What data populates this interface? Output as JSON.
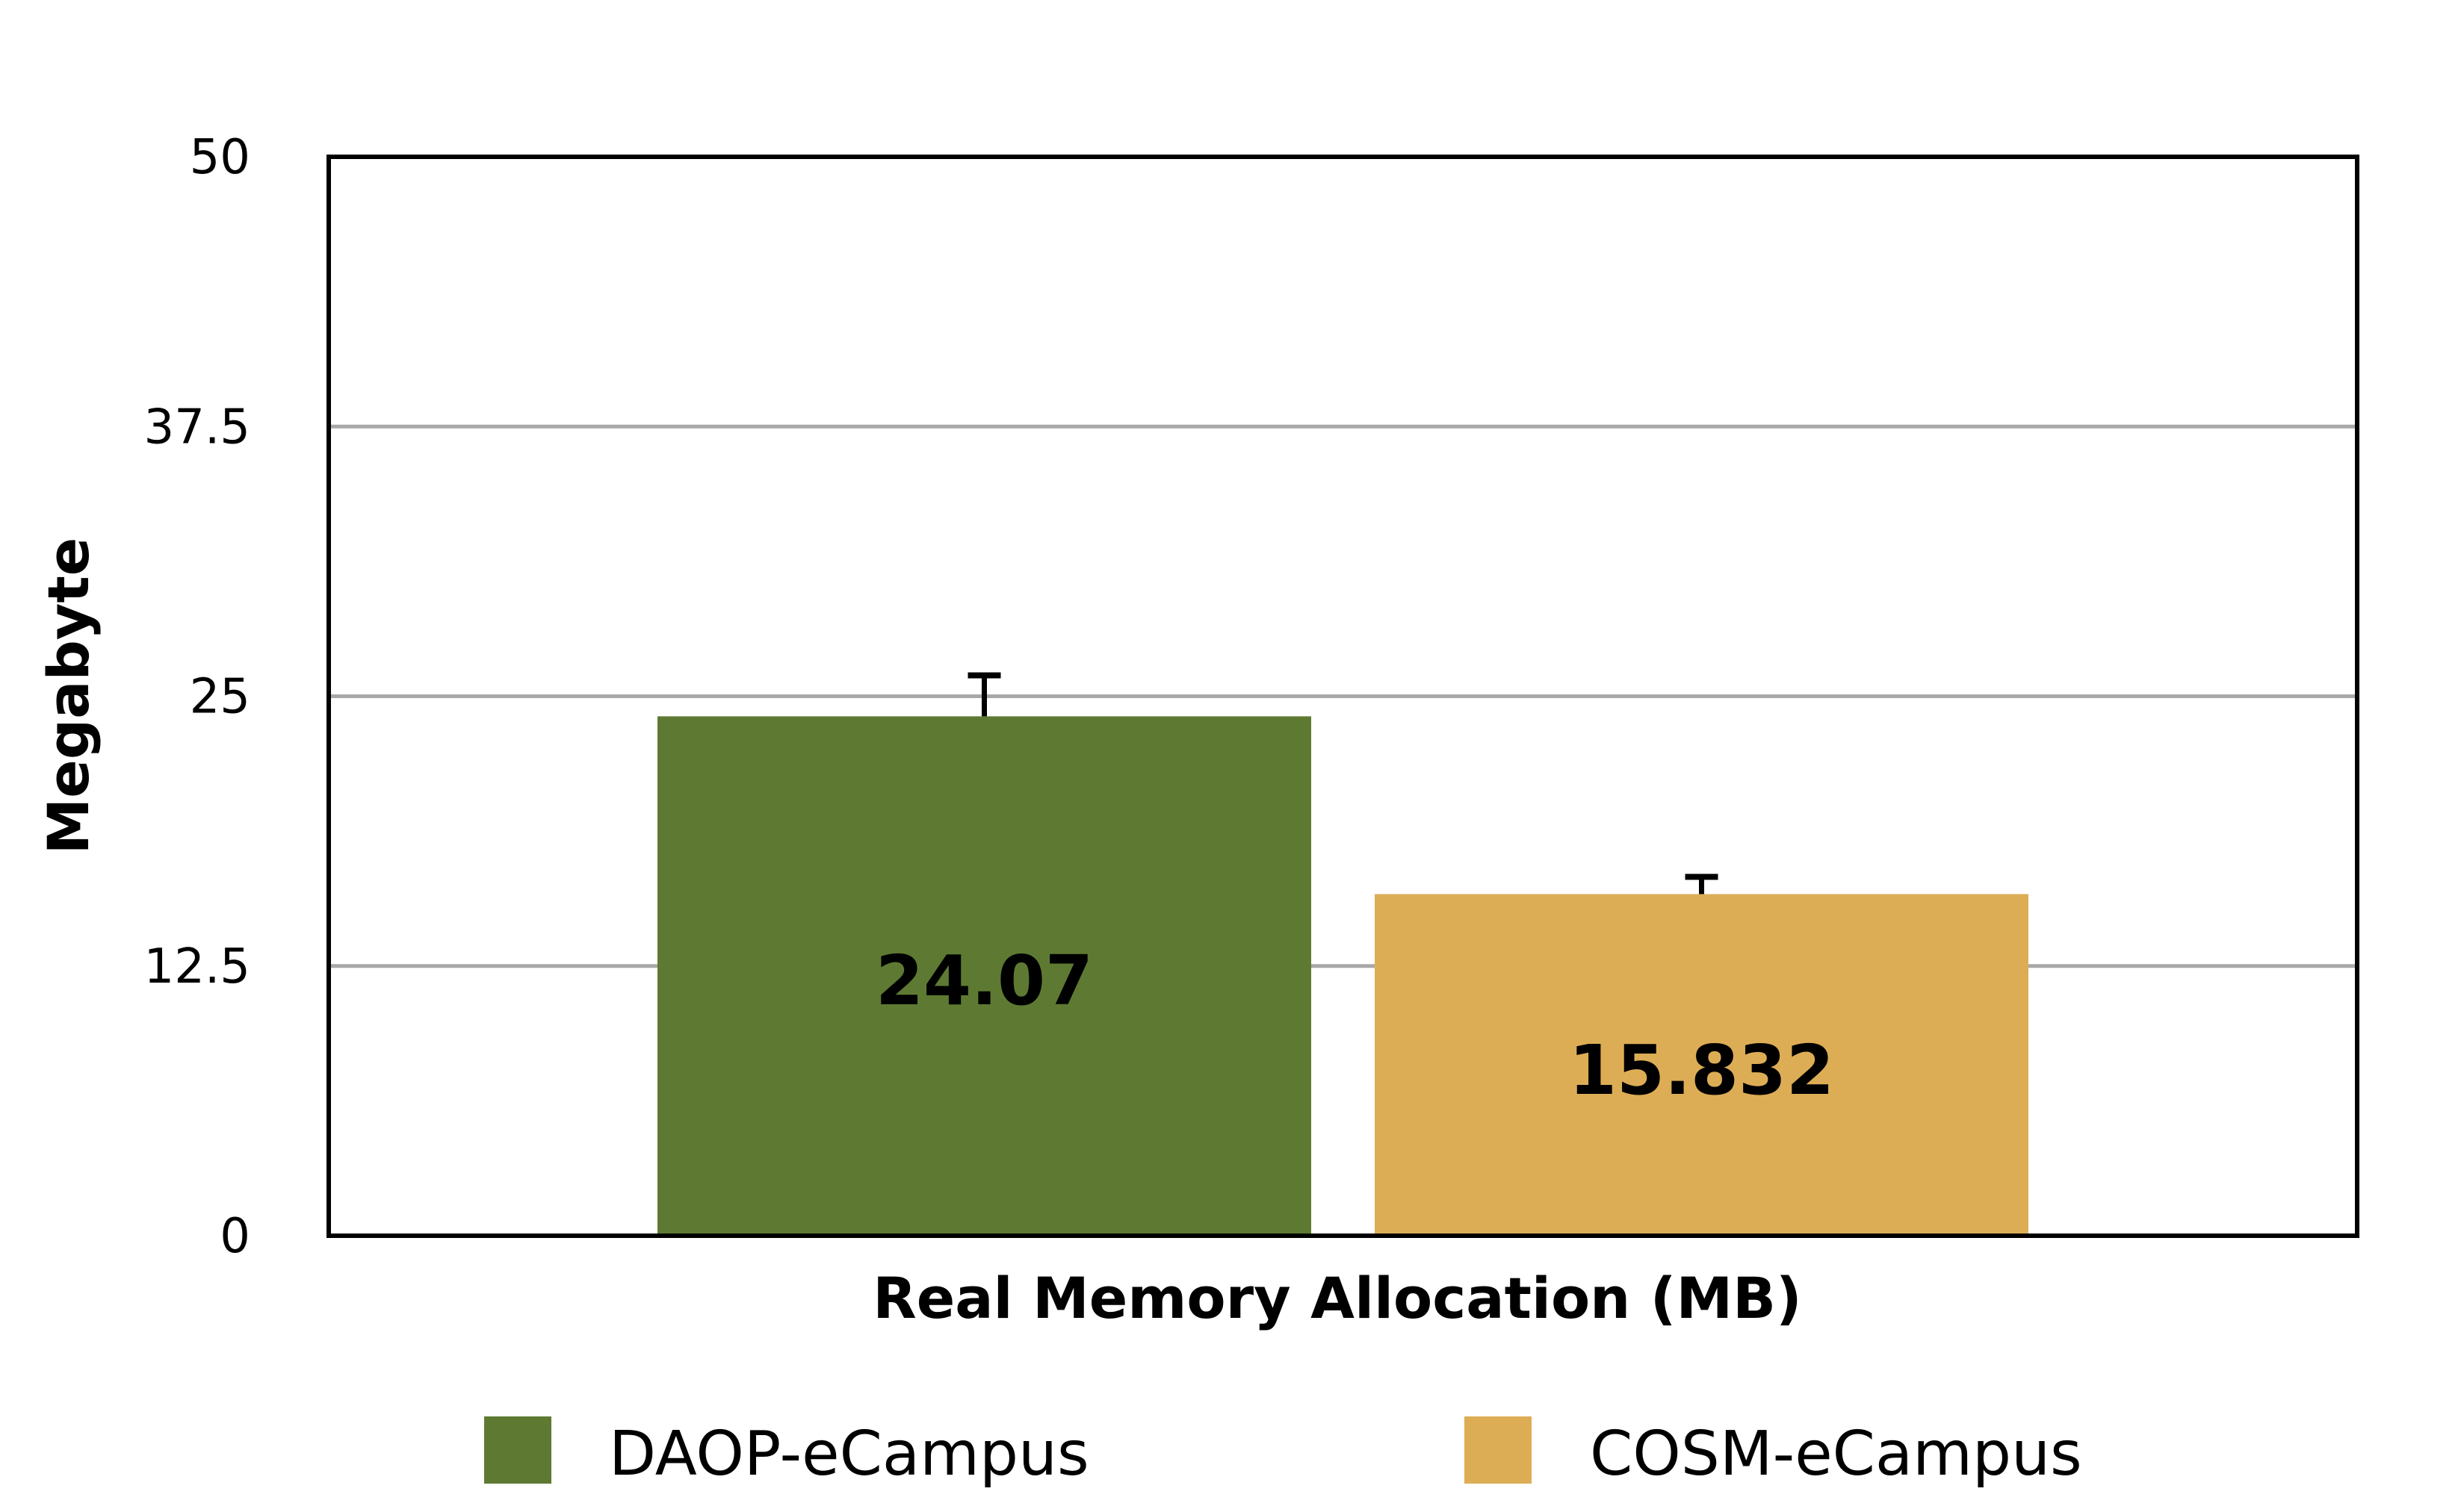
{
  "chart_data": {
    "type": "bar",
    "title": "",
    "xlabel": "Real Memory Allocation (MB)",
    "ylabel": "Megabyte",
    "ylim": [
      0,
      50
    ],
    "yticks": [
      "0",
      "12.5",
      "25",
      "37.5",
      "50"
    ],
    "grid": true,
    "legend_position": "bottom",
    "series": [
      {
        "name": "DAOP-eCampus",
        "value": 24.07,
        "label": "24.07",
        "error": 1.9,
        "color": "#5e7a32"
      },
      {
        "name": "COSM-eCampus",
        "value": 15.832,
        "label": "15.832",
        "error": 0.8,
        "color": "#ddad56"
      }
    ]
  }
}
